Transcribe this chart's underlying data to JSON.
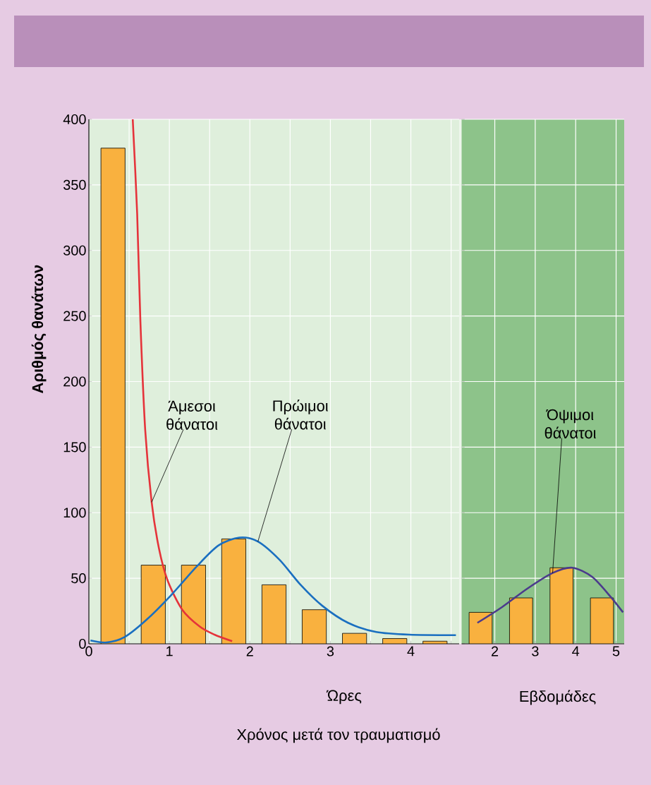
{
  "chart_data": [
    {
      "type": "bar",
      "ylabel": "Αριθμός θανάτων",
      "xlabel": "Ώρες",
      "xlim": [
        0,
        4.6
      ],
      "xticks": [
        0,
        {
          "value": 0.5,
          "label": null
        },
        1,
        {
          "value": 1.5,
          "label": null
        },
        2,
        {
          "value": 2.5,
          "label": null
        },
        3,
        {
          "value": 3.5,
          "label": null
        },
        4,
        {
          "value": 4.5,
          "label": null
        }
      ],
      "ylim": [
        0,
        400
      ],
      "yticks": [
        0,
        50,
        100,
        150,
        200,
        250,
        300,
        350,
        400
      ],
      "grid": true,
      "series": [
        {
          "color": "#f9b13f",
          "x": [
            0.3,
            0.8,
            1.3,
            1.8,
            2.3,
            2.8,
            3.3,
            3.8,
            4.3
          ],
          "values": [
            378,
            60,
            60,
            80,
            45,
            26,
            8,
            4,
            2
          ]
        },
        {
          "type": "line",
          "name": "Άμεσοι θάνατοι",
          "color": "#e5333a",
          "x": [
            0.545,
            0.6,
            0.64,
            0.7,
            0.78,
            0.87,
            0.98,
            1.16,
            1.38,
            1.56,
            1.78
          ],
          "values": [
            400,
            328,
            246,
            163,
            108,
            73,
            48,
            26,
            13,
            7,
            2
          ]
        },
        {
          "type": "line",
          "name": "Πρώιμοι θάνατοι",
          "color": "#1a6fc0",
          "x": [
            0.02,
            0.22,
            0.44,
            0.71,
            1.02,
            1.34,
            1.61,
            1.87,
            2.1,
            2.37,
            2.63,
            2.9,
            3.22,
            3.57,
            3.98,
            4.56
          ],
          "values": [
            2.5,
            1,
            5,
            18,
            37,
            59,
            75,
            81,
            78,
            64,
            45,
            29,
            16,
            9,
            7,
            6.6
          ]
        }
      ],
      "annotations": [
        "Χρόνος μετά τον τραυματισμό"
      ]
    },
    {
      "type": "bar",
      "xlabel": "Εβδομάδες",
      "xlim": [
        1.18,
        5.2
      ],
      "xticks": [
        2,
        3,
        4,
        5
      ],
      "ylim": [
        0,
        400
      ],
      "yticks": [
        0,
        50,
        100,
        150,
        200,
        250,
        300,
        350,
        400
      ],
      "grid": true,
      "tick_labels": "x",
      "series": [
        {
          "color": "#f9b13f",
          "x": [
            1.65,
            2.65,
            3.65,
            4.65
          ],
          "values": [
            24,
            35,
            58,
            35
          ]
        },
        {
          "type": "line",
          "name": "Όψιμοι θάνατοι",
          "color": "#4b3a8c",
          "x": [
            1.57,
            2.18,
            2.8,
            3.43,
            3.92,
            4.41,
            4.86,
            5.17
          ],
          "values": [
            16,
            28,
            42,
            54,
            58,
            51,
            36,
            24
          ]
        }
      ]
    }
  ]
}
